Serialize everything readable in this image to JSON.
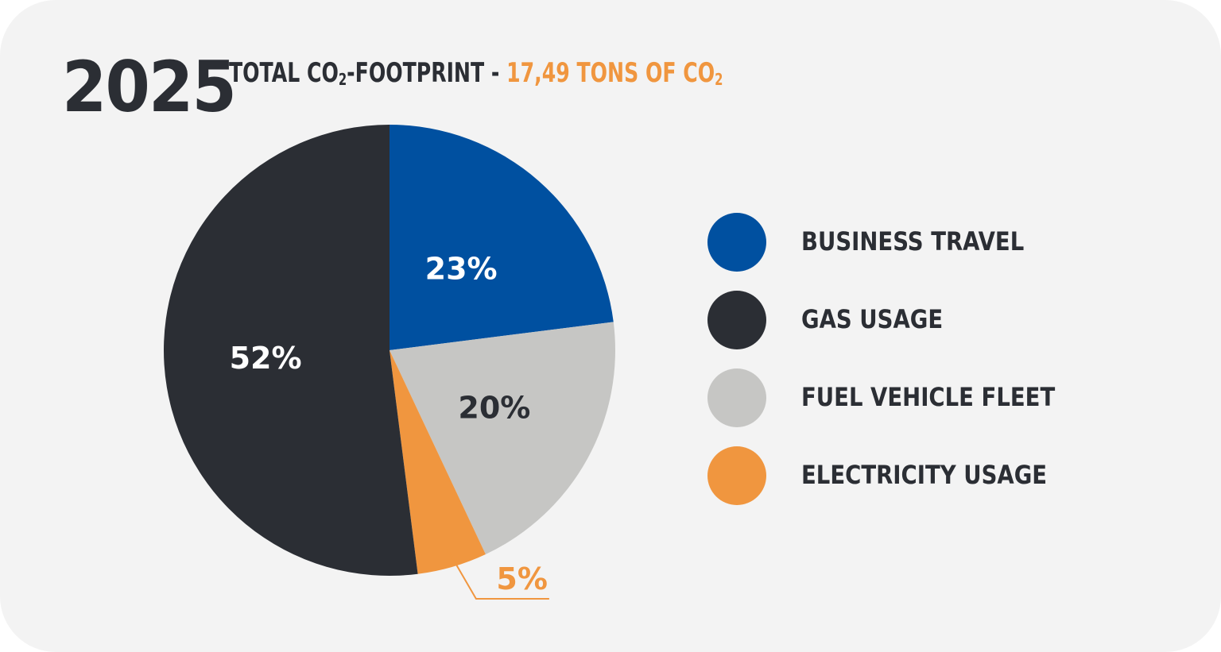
{
  "header": {
    "year": "2025",
    "title_prefix": "TOTAL CO",
    "title_sub": "2",
    "title_mid": "-FOOTPRINT - ",
    "total_value": "17,49 TONS OF CO",
    "total_sub": "2"
  },
  "colors": {
    "business_travel": "#0050a0",
    "gas_usage": "#2b2e34",
    "fuel_vehicle_fleet": "#c6c6c4",
    "electricity_usage": "#f0963f",
    "accent": "#f0963f",
    "background": "#f3f3f3",
    "text_dark": "#2b2e34"
  },
  "chart_data": {
    "type": "pie",
    "title": "TOTAL CO2-FOOTPRINT - 17,49 TONS OF CO2",
    "slices": [
      {
        "name": "BUSINESS TRAVEL",
        "value": 23,
        "label": "23%",
        "color": "#0050a0",
        "label_color": "#ffffff"
      },
      {
        "name": "FUEL VEHICLE FLEET",
        "value": 20,
        "label": "20%",
        "color": "#c6c6c4",
        "label_color": "#2b2e34"
      },
      {
        "name": "ELECTRICITY USAGE",
        "value": 5,
        "label": "5%",
        "color": "#f0963f",
        "label_color": "#f0963f"
      },
      {
        "name": "GAS USAGE",
        "value": 52,
        "label": "52%",
        "color": "#2b2e34",
        "label_color": "#ffffff"
      }
    ],
    "legend_position": "right",
    "legend": [
      {
        "label": "BUSINESS TRAVEL",
        "color": "#0050a0"
      },
      {
        "label": "GAS USAGE",
        "color": "#2b2e34"
      },
      {
        "label": "FUEL VEHICLE FLEET",
        "color": "#c6c6c4"
      },
      {
        "label": "ELECTRICITY USAGE",
        "color": "#f0963f"
      }
    ]
  }
}
